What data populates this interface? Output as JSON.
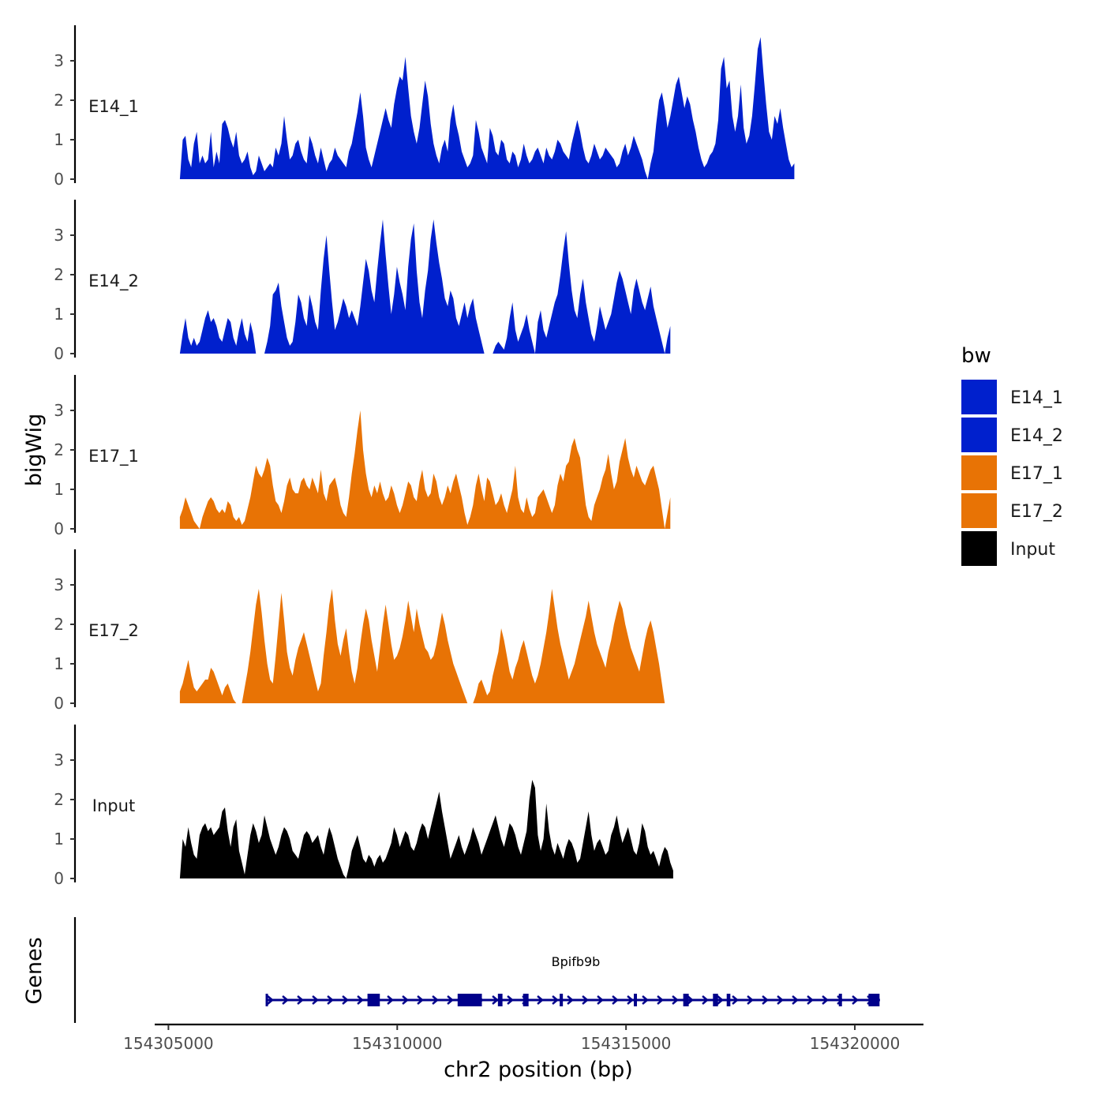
{
  "chart_data": {
    "type": "area",
    "y_axis_title": "bigWig",
    "x_axis_title": "chr2 position (bp)",
    "xlim": [
      154304700,
      154321500
    ],
    "x_ticks": [
      154305000,
      154310000,
      154315000,
      154320000
    ],
    "x_tick_labels": [
      "154305000",
      "154310000",
      "154315000",
      "154320000"
    ],
    "ylim": [
      0,
      3.9
    ],
    "y_ticks": [
      0,
      1,
      2,
      3
    ],
    "y_tick_labels": [
      "0",
      "1",
      "2",
      "3"
    ],
    "x_start": 154305250,
    "x_step": 61.6,
    "legend": {
      "title": "bw",
      "entries": [
        {
          "label": "E14_1",
          "color": "#0020cd"
        },
        {
          "label": "E14_2",
          "color": "#0020cd"
        },
        {
          "label": "E17_1",
          "color": "#e87305"
        },
        {
          "label": "E17_2",
          "color": "#e87305"
        },
        {
          "label": "Input",
          "color": "#000000"
        }
      ]
    },
    "series": [
      {
        "name": "E14_1",
        "color": "#0020cd",
        "values": [
          0.0,
          1.0,
          1.1,
          0.5,
          0.3,
          0.9,
          1.2,
          0.4,
          0.6,
          0.4,
          0.5,
          1.2,
          0.3,
          0.7,
          0.4,
          1.4,
          1.5,
          1.3,
          1.0,
          0.8,
          1.2,
          0.6,
          0.4,
          0.5,
          0.7,
          0.3,
          0.1,
          0.2,
          0.6,
          0.4,
          0.2,
          0.3,
          0.4,
          0.3,
          0.8,
          0.6,
          0.9,
          1.6,
          1.0,
          0.5,
          0.6,
          0.9,
          1.0,
          0.7,
          0.5,
          0.4,
          1.1,
          0.9,
          0.6,
          0.4,
          0.8,
          0.5,
          0.2,
          0.4,
          0.5,
          0.8,
          0.6,
          0.5,
          0.4,
          0.3,
          0.7,
          0.9,
          1.3,
          1.7,
          2.2,
          1.6,
          0.8,
          0.5,
          0.3,
          0.6,
          0.9,
          1.2,
          1.5,
          1.8,
          1.5,
          1.3,
          1.9,
          2.3,
          2.6,
          2.5,
          3.1,
          2.3,
          1.6,
          1.2,
          0.9,
          1.3,
          1.9,
          2.5,
          2.1,
          1.4,
          0.9,
          0.6,
          0.4,
          0.8,
          1.0,
          0.7,
          1.5,
          1.9,
          1.4,
          1.1,
          0.7,
          0.5,
          0.3,
          0.4,
          0.6,
          1.5,
          1.2,
          0.8,
          0.6,
          0.4,
          1.3,
          1.1,
          0.7,
          0.6,
          1.0,
          0.9,
          0.5,
          0.4,
          0.7,
          0.6,
          0.3,
          0.5,
          0.9,
          0.6,
          0.4,
          0.5,
          0.7,
          0.8,
          0.6,
          0.4,
          0.8,
          0.6,
          0.5,
          0.7,
          1.0,
          0.9,
          0.7,
          0.6,
          0.5,
          0.9,
          1.2,
          1.5,
          1.2,
          0.8,
          0.5,
          0.4,
          0.6,
          0.9,
          0.7,
          0.5,
          0.6,
          0.8,
          0.7,
          0.6,
          0.5,
          0.3,
          0.4,
          0.7,
          0.9,
          0.6,
          0.8,
          1.1,
          0.9,
          0.7,
          0.5,
          0.2,
          0.0,
          0.4,
          0.7,
          1.4,
          2.0,
          2.2,
          1.8,
          1.3,
          1.6,
          2.0,
          2.4,
          2.6,
          2.2,
          1.8,
          2.1,
          1.9,
          1.5,
          1.2,
          0.8,
          0.5,
          0.3,
          0.4,
          0.6,
          0.7,
          0.9,
          1.5,
          2.8,
          3.1,
          2.3,
          2.5,
          1.6,
          1.2,
          1.6,
          2.4,
          1.3,
          0.9,
          1.1,
          1.6,
          2.4,
          3.3,
          3.6,
          2.7,
          1.9,
          1.2,
          1.0,
          1.6,
          1.4,
          1.8,
          1.3,
          0.9,
          0.5,
          0.3,
          0.4
        ]
      },
      {
        "name": "E14_2",
        "color": "#0020cd",
        "values": [
          0.0,
          0.5,
          0.9,
          0.4,
          0.2,
          0.4,
          0.2,
          0.3,
          0.6,
          0.9,
          1.1,
          0.8,
          0.9,
          0.7,
          0.4,
          0.3,
          0.6,
          0.9,
          0.8,
          0.4,
          0.2,
          0.6,
          0.9,
          0.5,
          0.3,
          0.8,
          0.5,
          0.0,
          null,
          null,
          0.0,
          0.3,
          0.7,
          1.5,
          1.6,
          1.8,
          1.2,
          0.8,
          0.4,
          0.2,
          0.3,
          0.8,
          1.5,
          1.3,
          0.9,
          0.7,
          1.5,
          1.2,
          0.8,
          0.6,
          1.6,
          2.4,
          3.0,
          2.1,
          1.3,
          0.6,
          0.8,
          1.1,
          1.4,
          1.2,
          0.9,
          1.1,
          0.9,
          0.7,
          1.2,
          1.8,
          2.4,
          2.1,
          1.6,
          1.3,
          2.1,
          2.8,
          3.4,
          2.5,
          1.7,
          1.0,
          1.5,
          2.2,
          1.8,
          1.5,
          1.1,
          2.2,
          2.9,
          3.3,
          2.1,
          1.3,
          0.9,
          1.6,
          2.1,
          2.9,
          3.4,
          2.8,
          2.3,
          1.9,
          1.4,
          1.2,
          1.6,
          1.4,
          0.9,
          0.7,
          1.0,
          1.3,
          0.9,
          1.2,
          1.4,
          0.9,
          0.6,
          0.3,
          0.0,
          null,
          null,
          0.0,
          0.2,
          0.3,
          0.2,
          0.1,
          0.4,
          0.9,
          1.3,
          0.6,
          0.3,
          0.5,
          0.7,
          1.0,
          0.6,
          0.3,
          0.0,
          0.8,
          1.1,
          0.6,
          0.4,
          0.7,
          1.0,
          1.3,
          1.5,
          2.0,
          2.6,
          3.1,
          2.3,
          1.6,
          1.1,
          0.9,
          1.5,
          1.9,
          1.3,
          0.9,
          0.5,
          0.3,
          0.7,
          1.2,
          0.9,
          0.6,
          0.8,
          1.0,
          1.4,
          1.8,
          2.1,
          1.9,
          1.6,
          1.3,
          1.0,
          1.6,
          1.9,
          1.6,
          1.3,
          1.1,
          1.4,
          1.7,
          1.2,
          0.9,
          0.6,
          0.3,
          0.0,
          0.4,
          0.7
        ]
      },
      {
        "name": "E17_1",
        "color": "#e87305",
        "values": [
          0.3,
          0.5,
          0.8,
          0.6,
          0.4,
          0.2,
          0.1,
          0.0,
          0.3,
          0.5,
          0.7,
          0.8,
          0.7,
          0.5,
          0.4,
          0.5,
          0.4,
          0.7,
          0.6,
          0.3,
          0.2,
          0.3,
          0.1,
          0.2,
          0.5,
          0.8,
          1.2,
          1.6,
          1.4,
          1.3,
          1.5,
          1.8,
          1.6,
          1.1,
          0.7,
          0.6,
          0.4,
          0.7,
          1.1,
          1.3,
          1.0,
          0.9,
          0.9,
          1.2,
          1.3,
          1.1,
          1.0,
          1.3,
          1.1,
          0.9,
          1.5,
          0.9,
          0.7,
          1.1,
          1.2,
          1.3,
          1.0,
          0.6,
          0.4,
          0.3,
          0.8,
          1.4,
          1.9,
          2.5,
          3.0,
          2.0,
          1.4,
          1.0,
          0.8,
          1.1,
          0.9,
          1.2,
          0.9,
          0.7,
          0.8,
          1.1,
          0.9,
          0.6,
          0.4,
          0.6,
          0.9,
          1.2,
          1.1,
          0.8,
          0.7,
          1.2,
          1.5,
          1.0,
          0.8,
          0.9,
          1.4,
          1.2,
          0.8,
          0.6,
          0.8,
          1.1,
          0.9,
          1.2,
          1.4,
          1.1,
          0.8,
          0.4,
          0.1,
          0.3,
          0.6,
          1.1,
          1.4,
          1.0,
          0.7,
          1.3,
          1.2,
          0.9,
          0.6,
          0.7,
          0.9,
          0.6,
          0.4,
          0.7,
          1.0,
          1.6,
          0.8,
          0.5,
          0.4,
          0.8,
          0.5,
          0.3,
          0.4,
          0.8,
          0.9,
          1.0,
          0.8,
          0.6,
          0.4,
          0.6,
          1.1,
          1.4,
          1.2,
          1.6,
          1.7,
          2.1,
          2.3,
          2.0,
          1.8,
          1.2,
          0.6,
          0.3,
          0.2,
          0.6,
          0.8,
          1.0,
          1.3,
          1.5,
          1.9,
          1.4,
          1.0,
          1.2,
          1.7,
          2.0,
          2.3,
          1.8,
          1.5,
          1.3,
          1.6,
          1.4,
          1.2,
          1.1,
          1.3,
          1.5,
          1.6,
          1.3,
          1.0,
          0.5,
          0.0,
          0.4,
          0.8
        ]
      },
      {
        "name": "E17_2",
        "color": "#e87305",
        "values": [
          0.3,
          0.5,
          0.8,
          1.1,
          0.7,
          0.4,
          0.3,
          0.4,
          0.5,
          0.6,
          0.6,
          0.9,
          0.8,
          0.6,
          0.4,
          0.2,
          0.4,
          0.5,
          0.3,
          0.1,
          0.0,
          null,
          0.0,
          0.4,
          0.8,
          1.3,
          1.9,
          2.5,
          2.9,
          2.3,
          1.6,
          1.0,
          0.6,
          0.5,
          1.2,
          2.0,
          2.8,
          2.1,
          1.3,
          0.9,
          0.7,
          1.1,
          1.4,
          1.6,
          1.8,
          1.5,
          1.2,
          0.9,
          0.6,
          0.3,
          0.5,
          1.2,
          1.8,
          2.5,
          2.9,
          2.1,
          1.5,
          1.2,
          1.6,
          1.9,
          1.3,
          0.8,
          0.5,
          0.9,
          1.5,
          2.0,
          2.4,
          2.1,
          1.6,
          1.2,
          0.8,
          1.4,
          2.0,
          2.5,
          2.0,
          1.5,
          1.1,
          1.2,
          1.4,
          1.7,
          2.1,
          2.6,
          2.2,
          1.8,
          2.4,
          2.0,
          1.7,
          1.4,
          1.3,
          1.1,
          1.2,
          1.5,
          1.9,
          2.3,
          2.0,
          1.6,
          1.3,
          1.0,
          0.8,
          0.6,
          0.4,
          0.2,
          0.0,
          null,
          0.0,
          0.2,
          0.5,
          0.6,
          0.4,
          0.2,
          0.3,
          0.7,
          1.0,
          1.3,
          1.9,
          1.6,
          1.2,
          0.8,
          0.6,
          0.9,
          1.1,
          1.4,
          1.6,
          1.3,
          1.0,
          0.7,
          0.5,
          0.7,
          1.0,
          1.4,
          1.8,
          2.3,
          2.9,
          2.4,
          1.9,
          1.5,
          1.2,
          0.9,
          0.6,
          0.8,
          1.0,
          1.3,
          1.6,
          1.9,
          2.2,
          2.6,
          2.2,
          1.8,
          1.5,
          1.3,
          1.1,
          0.9,
          1.3,
          1.6,
          2.0,
          2.3,
          2.6,
          2.4,
          2.0,
          1.7,
          1.4,
          1.2,
          1.0,
          0.8,
          1.2,
          1.6,
          1.9,
          2.1,
          1.8,
          1.4,
          1.0,
          0.5,
          0.0
        ]
      },
      {
        "name": "Input",
        "color": "#000000",
        "values": [
          0.0,
          1.0,
          0.8,
          1.3,
          0.9,
          0.6,
          0.5,
          1.1,
          1.3,
          1.4,
          1.2,
          1.3,
          1.1,
          1.2,
          1.3,
          1.7,
          1.8,
          1.2,
          0.8,
          1.3,
          1.5,
          0.7,
          0.4,
          0.1,
          0.6,
          1.1,
          1.4,
          1.2,
          0.9,
          1.1,
          1.6,
          1.3,
          1.0,
          0.8,
          0.6,
          0.8,
          1.1,
          1.3,
          1.2,
          1.0,
          0.7,
          0.6,
          0.5,
          0.8,
          1.1,
          1.2,
          1.1,
          0.9,
          1.0,
          1.1,
          0.8,
          0.6,
          1.0,
          1.3,
          1.1,
          0.8,
          0.5,
          0.3,
          0.1,
          0.0,
          0.3,
          0.7,
          0.9,
          1.1,
          0.8,
          0.5,
          0.4,
          0.6,
          0.5,
          0.3,
          0.5,
          0.6,
          0.4,
          0.5,
          0.7,
          0.9,
          1.3,
          1.1,
          0.8,
          1.0,
          1.2,
          1.1,
          0.8,
          0.7,
          0.9,
          1.2,
          1.4,
          1.3,
          1.0,
          1.3,
          1.6,
          1.9,
          2.2,
          1.7,
          1.3,
          0.9,
          0.5,
          0.7,
          0.9,
          1.1,
          0.8,
          0.6,
          0.8,
          1.0,
          1.3,
          1.1,
          0.9,
          0.6,
          0.8,
          1.0,
          1.2,
          1.4,
          1.6,
          1.3,
          1.0,
          0.8,
          1.1,
          1.4,
          1.3,
          1.1,
          0.8,
          0.6,
          0.9,
          1.2,
          2.0,
          2.5,
          2.3,
          1.1,
          0.7,
          1.0,
          1.9,
          1.2,
          0.8,
          0.6,
          0.9,
          0.7,
          0.5,
          0.8,
          1.0,
          0.9,
          0.7,
          0.4,
          0.5,
          0.9,
          1.3,
          1.7,
          1.1,
          0.7,
          0.9,
          1.0,
          0.8,
          0.6,
          0.7,
          1.1,
          1.3,
          1.6,
          1.2,
          0.9,
          1.1,
          1.3,
          1.0,
          0.7,
          0.6,
          0.9,
          1.4,
          1.2,
          0.8,
          0.6,
          0.7,
          0.5,
          0.3,
          0.6,
          0.8,
          0.7,
          0.4,
          0.2
        ]
      }
    ],
    "genes": {
      "track_title": "Genes",
      "gene_name": "Bpifb9b",
      "color": "#00008b",
      "start": 154307150,
      "end": 154320550,
      "strand": "+",
      "exons": [
        {
          "start": 154309350,
          "end": 154309620
        },
        {
          "start": 154311320,
          "end": 154311850
        },
        {
          "start": 154312200,
          "end": 154312300
        },
        {
          "start": 154312750,
          "end": 154312870
        },
        {
          "start": 154313550,
          "end": 154313620
        },
        {
          "start": 154315170,
          "end": 154315210
        },
        {
          "start": 154316250,
          "end": 154316370
        },
        {
          "start": 154316900,
          "end": 154317010
        },
        {
          "start": 154317200,
          "end": 154317280
        },
        {
          "start": 154319650,
          "end": 154319700
        },
        {
          "start": 154320300,
          "end": 154320540
        }
      ]
    }
  }
}
